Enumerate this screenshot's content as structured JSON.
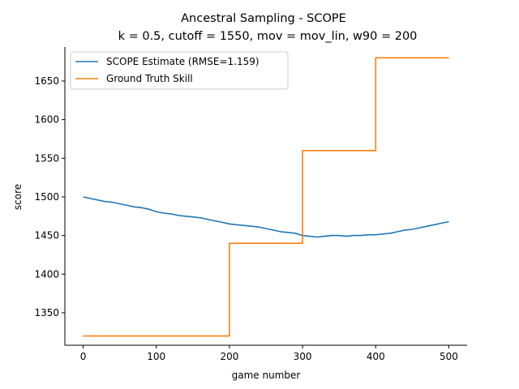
{
  "chart_data": {
    "type": "line",
    "title": "Ancestral Sampling - SCOPE",
    "subtitle": "k = 0.5, cutoff = 1550, mov = mov_lin, w90 = 200",
    "xlabel": "game number",
    "ylabel": "score",
    "xlim": [
      -25,
      525
    ],
    "ylim": [
      1308,
      1694
    ],
    "xticks": [
      0,
      100,
      200,
      300,
      400,
      500
    ],
    "yticks": [
      1350,
      1400,
      1450,
      1500,
      1550,
      1600,
      1650
    ],
    "grid": false,
    "legend": "top-left",
    "series": [
      {
        "name": "SCOPE Estimate (RMSE=1.159)",
        "color": "#1f77b4",
        "x": [
          0,
          10,
          20,
          30,
          40,
          50,
          60,
          70,
          80,
          90,
          100,
          110,
          120,
          130,
          140,
          150,
          160,
          170,
          180,
          190,
          200,
          210,
          220,
          230,
          240,
          250,
          260,
          270,
          280,
          290,
          300,
          310,
          320,
          330,
          340,
          350,
          360,
          370,
          380,
          390,
          400,
          410,
          420,
          430,
          440,
          450,
          460,
          470,
          480,
          490,
          500
        ],
        "y": [
          1500,
          1498,
          1496,
          1494,
          1493,
          1491,
          1489,
          1487,
          1486,
          1484,
          1481,
          1479,
          1478,
          1476,
          1475,
          1474,
          1473,
          1471,
          1469,
          1467,
          1465,
          1464,
          1463,
          1462,
          1461,
          1459,
          1457,
          1455,
          1454,
          1453,
          1450,
          1449,
          1448,
          1449,
          1450,
          1450,
          1449,
          1450,
          1450,
          1451,
          1451,
          1452,
          1453,
          1455,
          1457,
          1458,
          1460,
          1462,
          1464,
          1466,
          1468
        ]
      },
      {
        "name": "Ground Truth Skill",
        "color": "#ff7f0e",
        "step": true,
        "x": [
          0,
          200,
          200,
          300,
          300,
          400,
          400,
          500
        ],
        "y": [
          1320,
          1320,
          1440,
          1440,
          1560,
          1560,
          1680,
          1680
        ]
      }
    ]
  }
}
